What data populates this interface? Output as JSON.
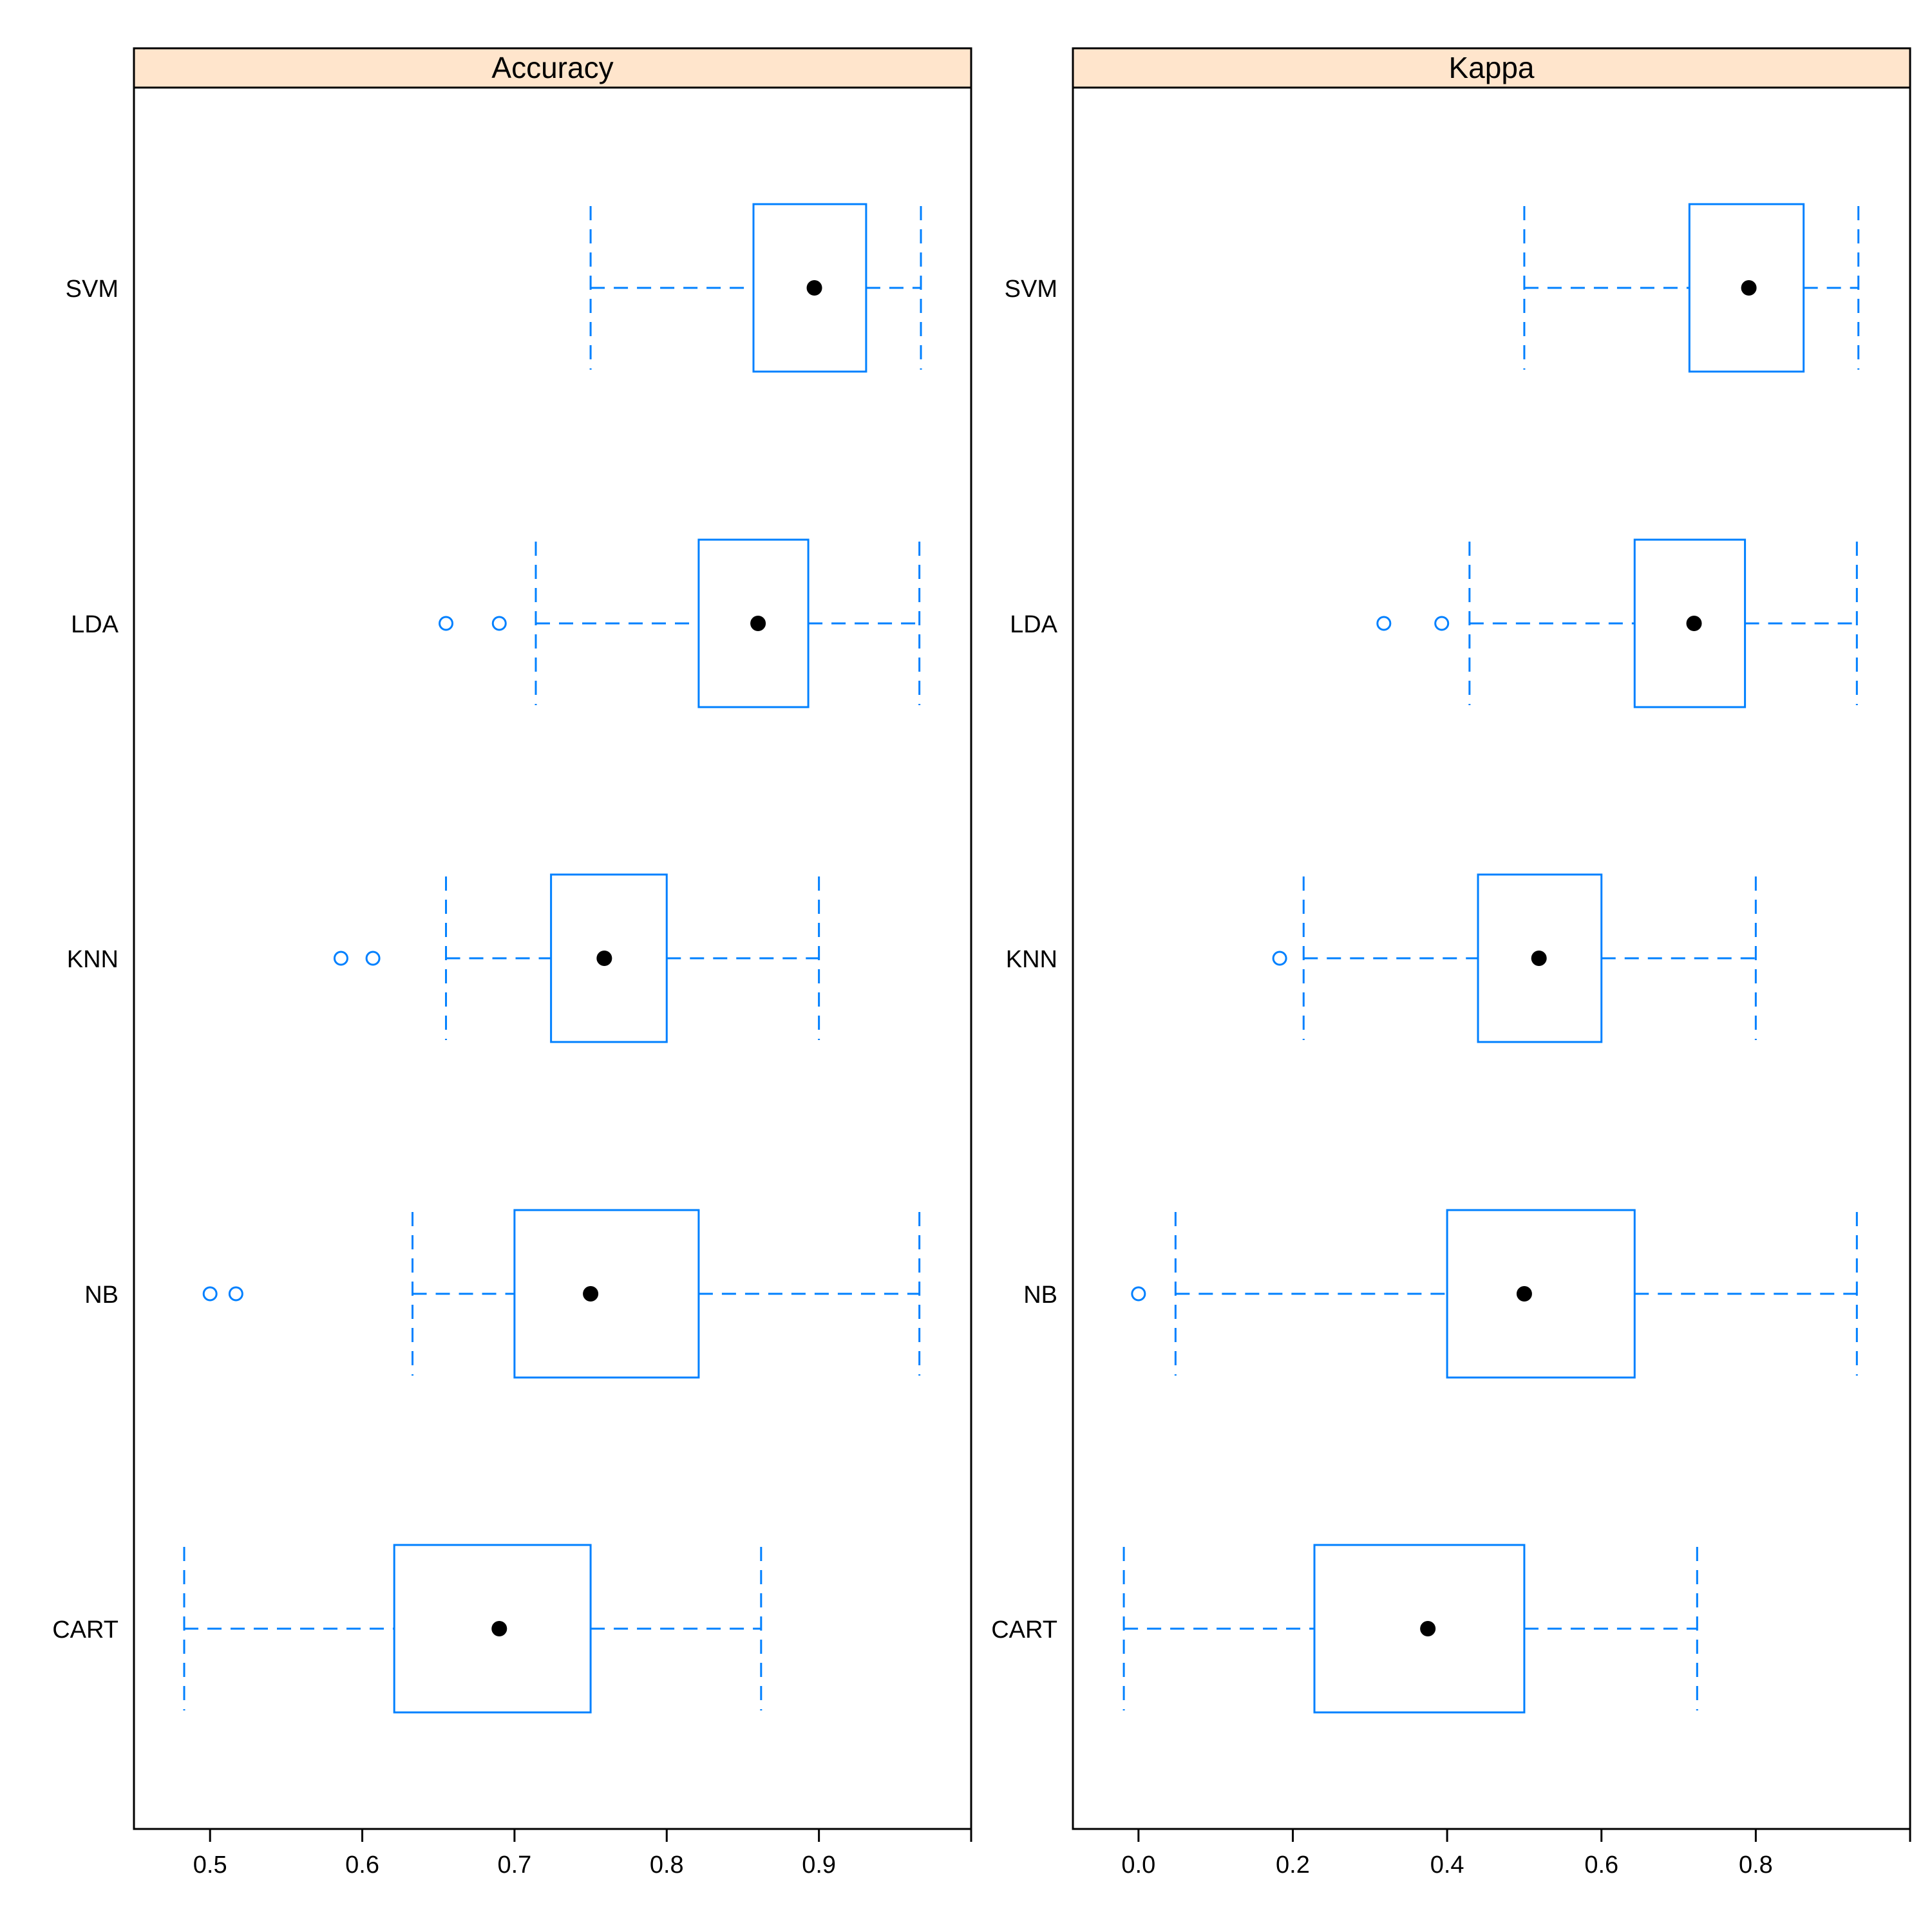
{
  "chart_data": [
    {
      "type": "boxplot",
      "title": "Accuracy",
      "orientation": "horizontal",
      "categories": [
        "SVM",
        "LDA",
        "KNN",
        "NB",
        "CART"
      ],
      "xlim": [
        0.45,
        1.0
      ],
      "xticks": [
        0.5,
        0.6,
        0.7,
        0.8,
        0.9
      ],
      "xtick_labels": [
        "0.5",
        "0.6",
        "0.7",
        "0.8",
        "0.9"
      ],
      "boxes": [
        {
          "label": "SVM",
          "whisker_low": 0.75,
          "q1": 0.857,
          "median": 0.897,
          "q3": 0.931,
          "whisker_high": 0.967,
          "outliers": []
        },
        {
          "label": "LDA",
          "whisker_low": 0.714,
          "q1": 0.821,
          "median": 0.86,
          "q3": 0.893,
          "whisker_high": 0.966,
          "outliers": [
            0.655,
            0.69
          ]
        },
        {
          "label": "KNN",
          "whisker_low": 0.655,
          "q1": 0.724,
          "median": 0.759,
          "q3": 0.8,
          "whisker_high": 0.9,
          "outliers": [
            0.586,
            0.607
          ]
        },
        {
          "label": "NB",
          "whisker_low": 0.633,
          "q1": 0.7,
          "median": 0.75,
          "q3": 0.821,
          "whisker_high": 0.966,
          "outliers": [
            0.5,
            0.517
          ]
        },
        {
          "label": "CART",
          "whisker_low": 0.483,
          "q1": 0.621,
          "median": 0.69,
          "q3": 0.75,
          "whisker_high": 0.862,
          "outliers": []
        }
      ]
    },
    {
      "type": "boxplot",
      "title": "Kappa",
      "orientation": "horizontal",
      "categories": [
        "SVM",
        "LDA",
        "KNN",
        "NB",
        "CART"
      ],
      "xlim": [
        -0.085,
        1.0
      ],
      "xticks": [
        0.0,
        0.2,
        0.4,
        0.6,
        0.8
      ],
      "xtick_labels": [
        "0.0",
        "0.2",
        "0.4",
        "0.6",
        "0.8"
      ],
      "boxes": [
        {
          "label": "SVM",
          "whisker_low": 0.5,
          "q1": 0.714,
          "median": 0.791,
          "q3": 0.862,
          "whisker_high": 0.933,
          "outliers": []
        },
        {
          "label": "LDA",
          "whisker_low": 0.429,
          "q1": 0.643,
          "median": 0.72,
          "q3": 0.786,
          "whisker_high": 0.931,
          "outliers": [
            0.318,
            0.393
          ]
        },
        {
          "label": "KNN",
          "whisker_low": 0.214,
          "q1": 0.44,
          "median": 0.519,
          "q3": 0.6,
          "whisker_high": 0.8,
          "outliers": [
            0.183
          ]
        },
        {
          "label": "NB",
          "whisker_low": 0.048,
          "q1": 0.4,
          "median": 0.5,
          "q3": 0.643,
          "whisker_high": 0.931,
          "outliers": [
            0.0
          ]
        },
        {
          "label": "CART",
          "whisker_low": -0.019,
          "q1": 0.228,
          "median": 0.375,
          "q3": 0.5,
          "whisker_high": 0.724,
          "outliers": []
        }
      ]
    }
  ],
  "colors": {
    "strip_background": "#ffe5cc",
    "box": "#0080ff",
    "median_dot": "#000000",
    "frame": "#000000"
  }
}
